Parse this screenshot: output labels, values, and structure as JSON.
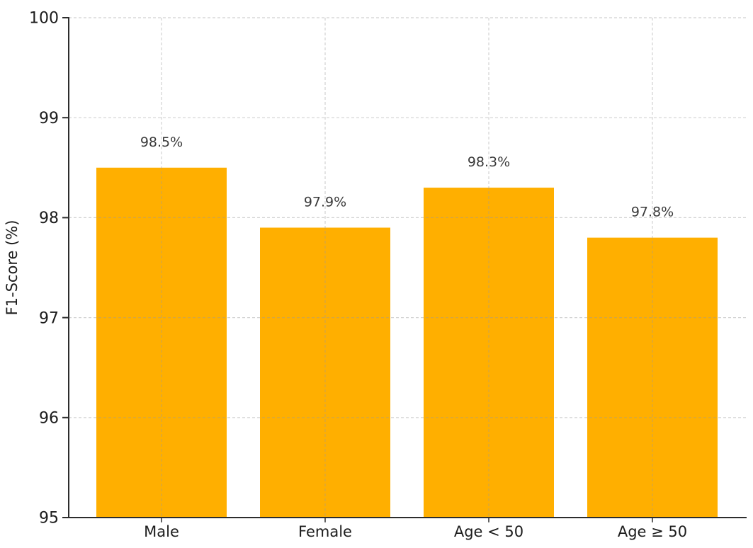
{
  "chart_data": {
    "type": "bar",
    "title": "",
    "xlabel": "",
    "ylabel": "F1-Score (%)",
    "categories": [
      "Male",
      "Female",
      "Age < 50",
      "Age ≥ 50"
    ],
    "values": [
      98.5,
      97.9,
      98.3,
      97.8
    ],
    "bar_labels": [
      "98.5%",
      "97.9%",
      "98.3%",
      "97.8%"
    ],
    "ylim": [
      95,
      100
    ],
    "yticks": [
      95,
      96,
      97,
      98,
      99,
      100
    ],
    "grid": "horizontal-and-vertical-dashed",
    "legend": "none",
    "spines": "left-and-bottom-only",
    "colors": {
      "bar": "#FFAF00",
      "axis": "#2d2d2d",
      "tick_label": "#1c1c1c",
      "grid": "#9a9a9a",
      "value_label": "#3a3a3a",
      "background": "#ffffff"
    }
  }
}
